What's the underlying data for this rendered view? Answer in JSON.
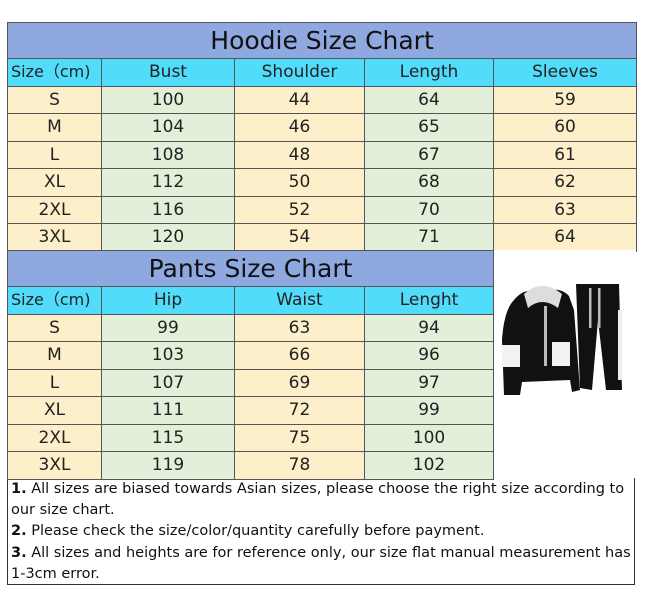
{
  "hoodie": {
    "title": "Hoodie Size Chart",
    "headers": [
      "Size（cm)",
      "Bust",
      "Shoulder",
      "Length",
      "Sleeves"
    ],
    "rows": [
      [
        "S",
        "100",
        "44",
        "64",
        "59"
      ],
      [
        "M",
        "104",
        "46",
        "65",
        "60"
      ],
      [
        "L",
        "108",
        "48",
        "67",
        "61"
      ],
      [
        "XL",
        "112",
        "50",
        "68",
        "62"
      ],
      [
        "2XL",
        "116",
        "52",
        "70",
        "63"
      ],
      [
        "3XL",
        "120",
        "54",
        "71",
        "64"
      ]
    ]
  },
  "pants": {
    "title": "Pants Size Chart",
    "headers": [
      "Size（cm)",
      "Hip",
      "Waist",
      "Lenght"
    ],
    "rows": [
      [
        "S",
        "99",
        "63",
        "94"
      ],
      [
        "M",
        "103",
        "66",
        "96"
      ],
      [
        "L",
        "107",
        "69",
        "97"
      ],
      [
        "XL",
        "111",
        "72",
        "99"
      ],
      [
        "2XL",
        "115",
        "75",
        "100"
      ],
      [
        "3XL",
        "119",
        "78",
        "102"
      ]
    ]
  },
  "notes": [
    {
      "num": "1.",
      "text": " All sizes are biased towards Asian sizes, please choose the right size according to our size chart."
    },
    {
      "num": "2.",
      "text": " Please check the size/color/quantity carefully before payment."
    },
    {
      "num": "3.",
      "text": " All sizes and heights are for reference only, our size flat manual measurement has 1-3cm error."
    }
  ],
  "colors": {
    "title_bg": "#8fa8df",
    "header_bg": "#52dcfb",
    "cream": "#fcefc9",
    "green": "#e2efd9"
  },
  "image": {
    "icon": "hoodie-and-pants-product-photo"
  }
}
